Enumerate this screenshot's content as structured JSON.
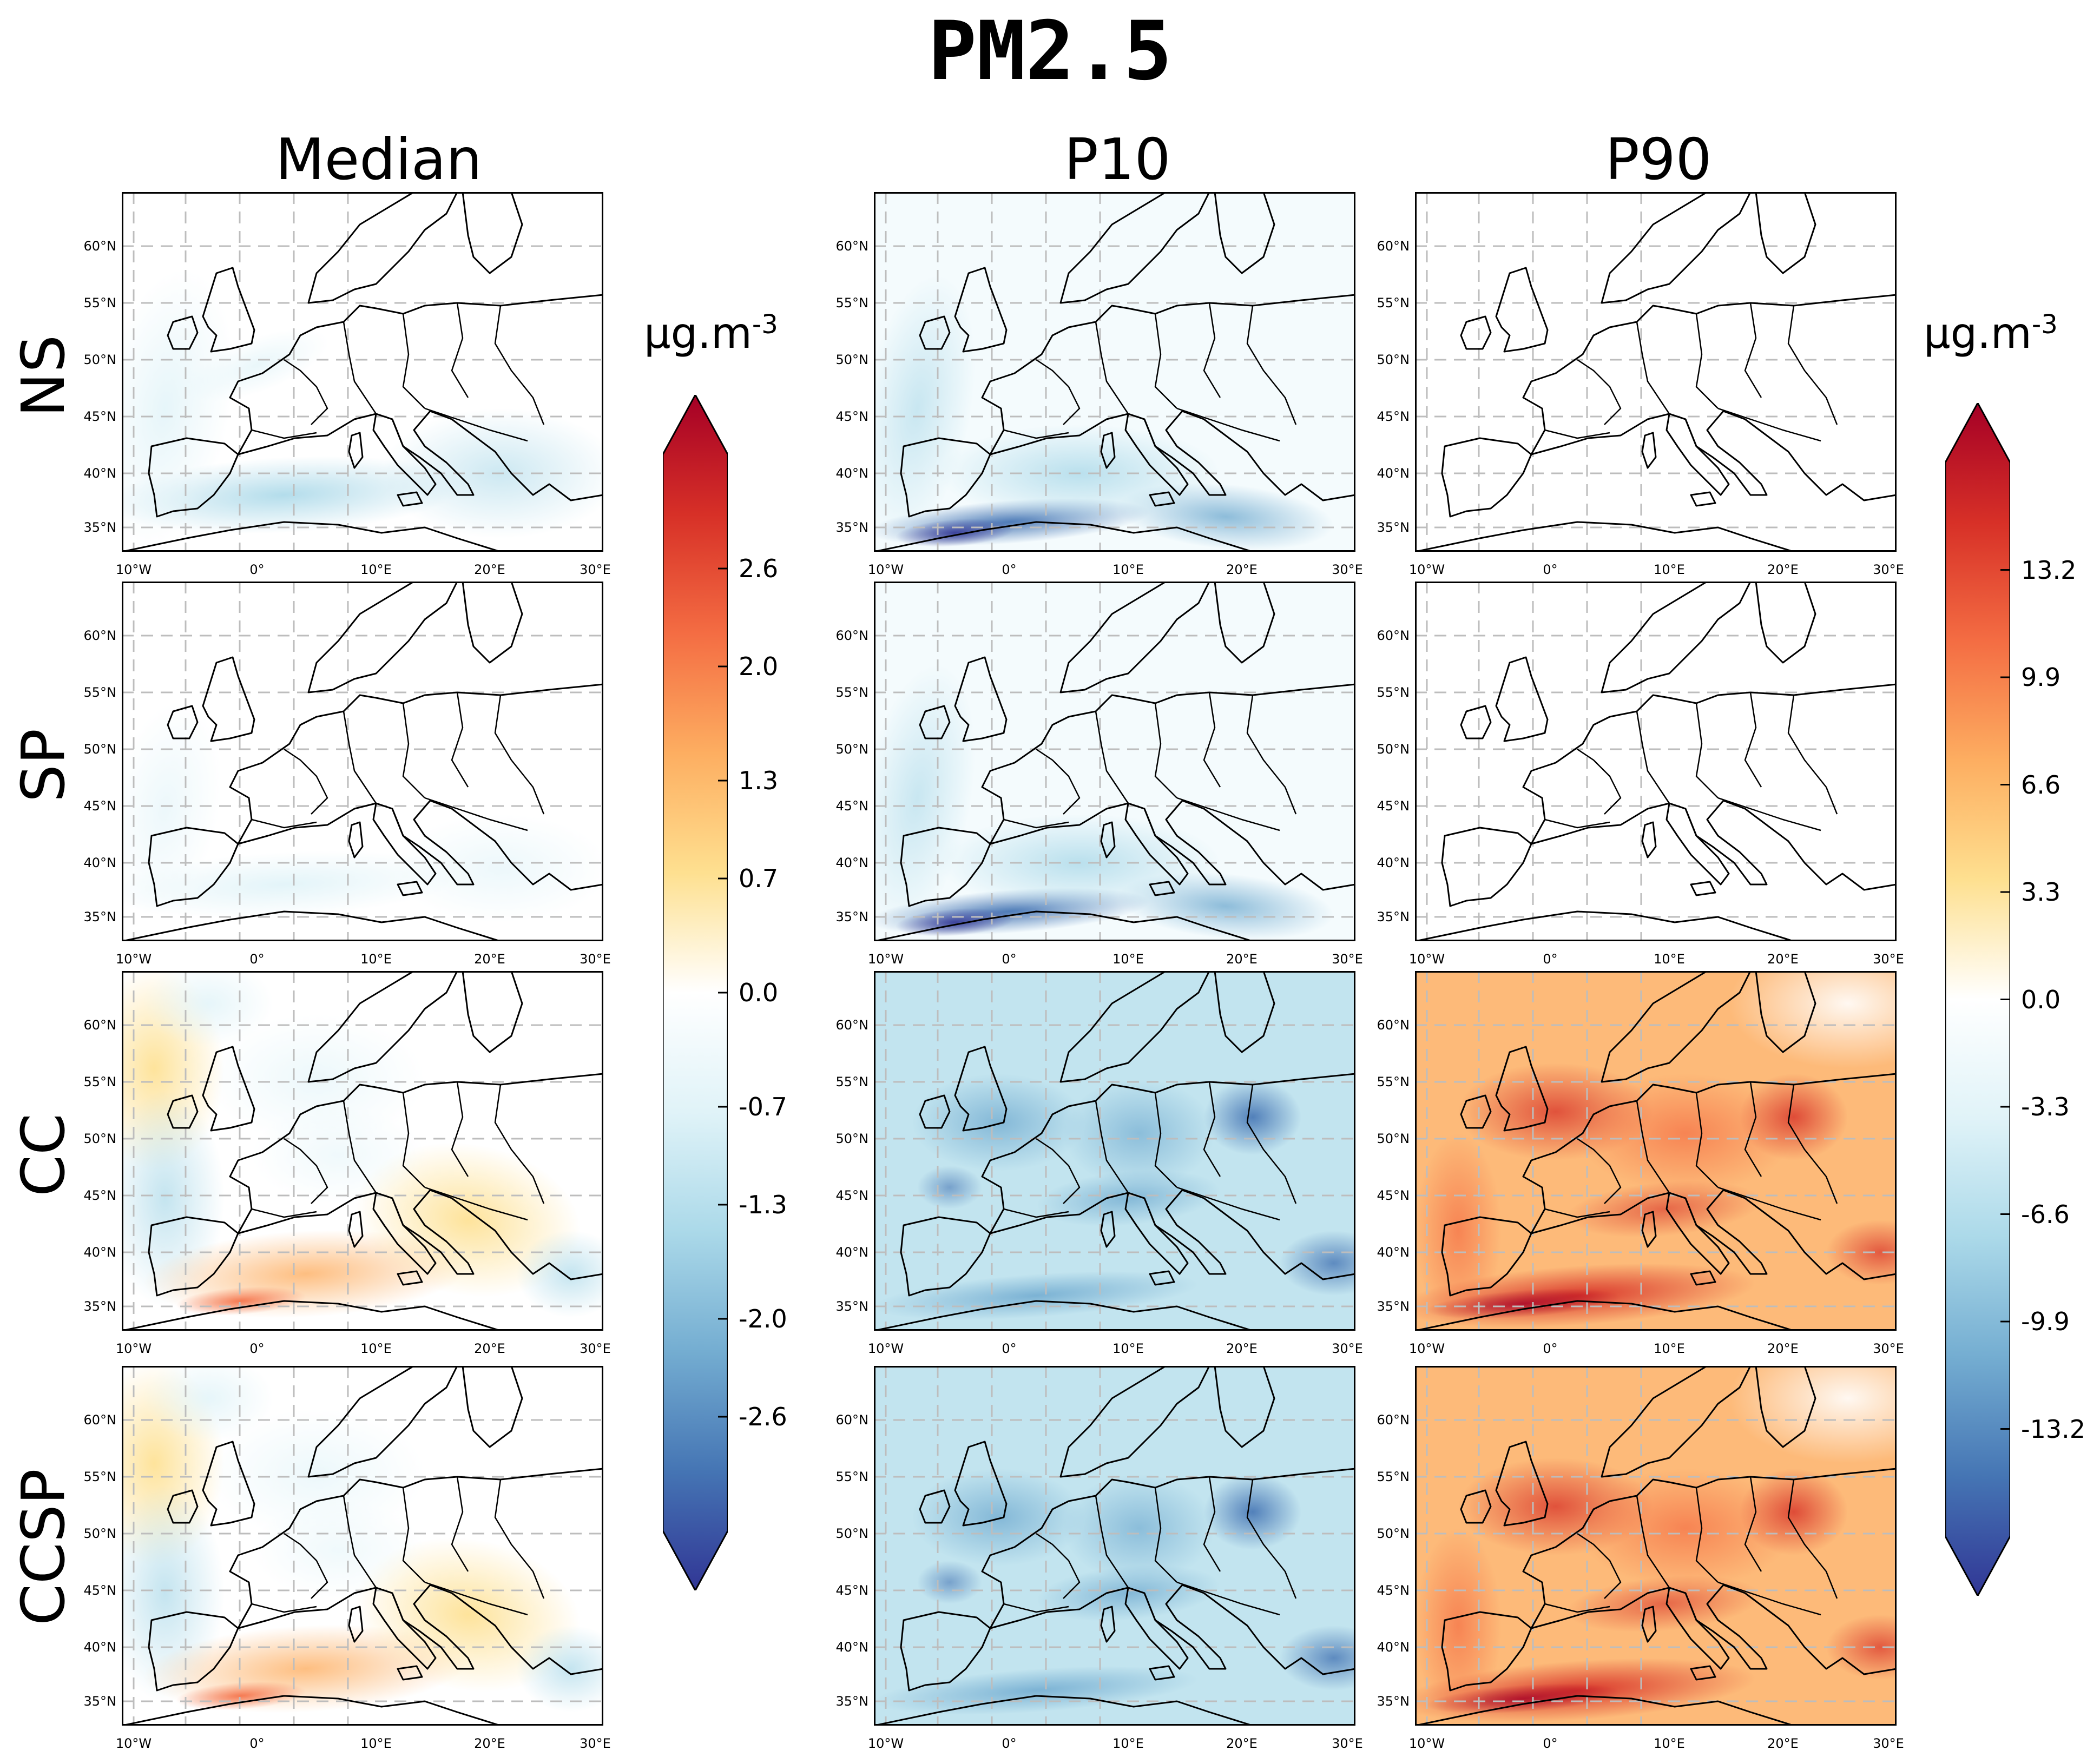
{
  "figure": {
    "title": "PM2.5",
    "column_titles": [
      "Median",
      "P10",
      "P90"
    ],
    "row_labels": [
      "NS",
      "SP",
      "CC",
      "CCSP"
    ],
    "lat_labels": [
      "60°N",
      "55°N",
      "50°N",
      "45°N",
      "40°N",
      "35°N"
    ],
    "lon_labels": [
      "10°W",
      "0°",
      "10°E",
      "20°E",
      "30°E"
    ]
  },
  "colorbars": {
    "median": {
      "unit_base": "µg.m",
      "unit_exp": "-3",
      "ticks": [
        "2.6",
        "2.0",
        "1.3",
        "0.7",
        "0.0",
        "-0.7",
        "-1.3",
        "-2.0",
        "-2.6"
      ],
      "tick_values": [
        2.6,
        2.0,
        1.3,
        0.7,
        0.0,
        -0.7,
        -1.3,
        -2.0,
        -2.6
      ],
      "range": [
        -3.3,
        3.3
      ]
    },
    "p90": {
      "unit_base": "µg.m",
      "unit_exp": "-3",
      "ticks": [
        "13.2",
        "9.9",
        "6.6",
        "3.3",
        "0.0",
        "-3.3",
        "-6.6",
        "-9.9",
        "-13.2"
      ],
      "tick_values": [
        13.2,
        9.9,
        6.6,
        3.3,
        0.0,
        -3.3,
        -6.6,
        -9.9,
        -13.2
      ],
      "range": [
        -16.5,
        16.5
      ]
    }
  },
  "panels": [
    {
      "id": "ns-median",
      "row": "NS",
      "col": "Median",
      "fill": "low-blue"
    },
    {
      "id": "ns-p10",
      "row": "NS",
      "col": "P10",
      "fill": "blue-coast"
    },
    {
      "id": "ns-p90",
      "row": "NS",
      "col": "P90",
      "fill": "none"
    },
    {
      "id": "sp-median",
      "row": "SP",
      "col": "Median",
      "fill": "faint-blue"
    },
    {
      "id": "sp-p10",
      "row": "SP",
      "col": "P10",
      "fill": "blue-coast"
    },
    {
      "id": "sp-p90",
      "row": "SP",
      "col": "P90",
      "fill": "none"
    },
    {
      "id": "cc-median",
      "row": "CC",
      "col": "Median",
      "fill": "mixed"
    },
    {
      "id": "cc-p10",
      "row": "CC",
      "col": "P10",
      "fill": "blue"
    },
    {
      "id": "cc-p90",
      "row": "CC",
      "col": "P90",
      "fill": "red"
    },
    {
      "id": "ccsp-median",
      "row": "CCSP",
      "col": "Median",
      "fill": "mixed"
    },
    {
      "id": "ccsp-p10",
      "row": "CCSP",
      "col": "P10",
      "fill": "blue"
    },
    {
      "id": "ccsp-p90",
      "row": "CCSP",
      "col": "P90",
      "fill": "red"
    }
  ],
  "colors": {
    "deep_red": "#a50026",
    "red": "#d73027",
    "orange": "#f46d43",
    "light_orange": "#fdae61",
    "pale_orange": "#fee090",
    "white": "#ffffff",
    "pale_blue": "#e0f3f8",
    "light_blue": "#abd9e9",
    "blue": "#74add1",
    "mid_blue": "#4575b4",
    "deep_blue": "#313695",
    "grid": "#bdbdbd"
  }
}
